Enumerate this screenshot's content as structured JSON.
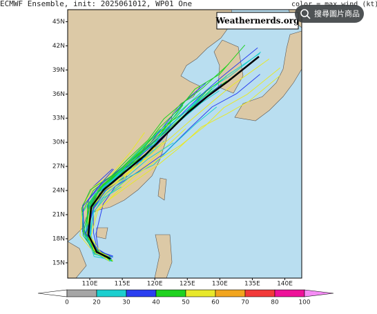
{
  "header": {
    "title": "ECMWF Ensemble, init: 2025061012, WP01 One",
    "legend_note": "color = max wind (kt)"
  },
  "watermark": "Weathernerds.org",
  "search_button": "搜尋圖片商品",
  "map": {
    "lon_range": [
      106.6,
      142.6
    ],
    "lat_range": [
      13.1,
      46.5
    ],
    "lon_ticks": [
      {
        "value": 110,
        "label": "110E"
      },
      {
        "value": 115,
        "label": "115E"
      },
      {
        "value": 120,
        "label": "120E"
      },
      {
        "value": 125,
        "label": "125E"
      },
      {
        "value": 130,
        "label": "130E"
      },
      {
        "value": 135,
        "label": "135E"
      },
      {
        "value": 140,
        "label": "140E"
      }
    ],
    "lat_ticks": [
      {
        "value": 15,
        "label": "15N"
      },
      {
        "value": 18,
        "label": "18N"
      },
      {
        "value": 21,
        "label": "21N"
      },
      {
        "value": 24,
        "label": "24N"
      },
      {
        "value": 27,
        "label": "27N"
      },
      {
        "value": 30,
        "label": "30N"
      },
      {
        "value": 33,
        "label": "33N"
      },
      {
        "value": 36,
        "label": "36N"
      },
      {
        "value": 39,
        "label": "39N"
      },
      {
        "value": 42,
        "label": "42N"
      },
      {
        "value": 45,
        "label": "45N"
      }
    ]
  },
  "colorbar": {
    "bounds": [
      0,
      20,
      30,
      40,
      50,
      60,
      70,
      80,
      100
    ],
    "colors": [
      "#a6a6a6",
      "#1ccfcf",
      "#2a3ff0",
      "#1fd21f",
      "#e8e82a",
      "#f2a51e",
      "#f23a3a",
      "#ee1199"
    ],
    "under_color": "#ffffff",
    "over_color": "#f58cf5"
  }
}
